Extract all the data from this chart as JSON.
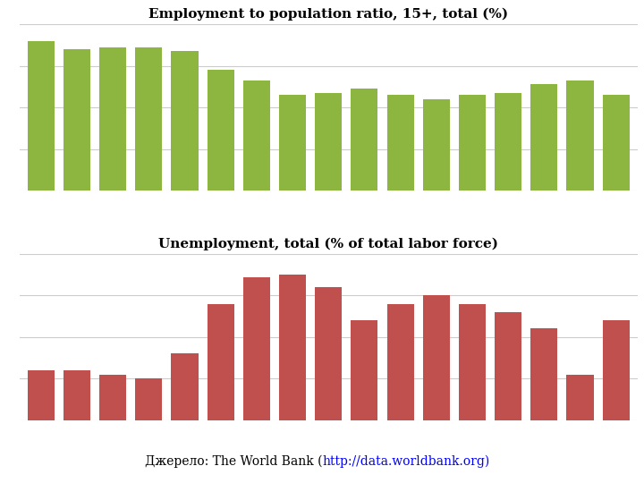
{
  "employment_values": [
    72,
    68,
    69,
    69,
    67,
    58,
    53,
    46,
    47,
    49,
    46,
    44,
    46,
    47,
    51,
    53,
    46
  ],
  "unemployment_values": [
    6.0,
    6.0,
    5.5,
    5.0,
    8.0,
    14.0,
    17.2,
    17.5,
    16.0,
    12.0,
    14.0,
    15.0,
    14.0,
    13.0,
    11.0,
    5.5,
    12.0
  ],
  "employment_title": "Employment to population ratio, 15+, total (%)",
  "unemployment_title": "Unemployment, total (% of total labor force)",
  "source_prefix": "Джерело: The World Bank (",
  "source_url": "http://data.worldbank.org",
  "source_suffix": ")",
  "employment_color": "#8DB640",
  "unemployment_color": "#C0504D",
  "background_color": "#FFFFFF",
  "grid_color": "#CCCCCC",
  "title_fontsize": 11,
  "source_fontsize": 10,
  "employment_ylim": [
    0,
    80
  ],
  "unemployment_ylim": [
    0,
    20
  ],
  "n_bars": 17
}
